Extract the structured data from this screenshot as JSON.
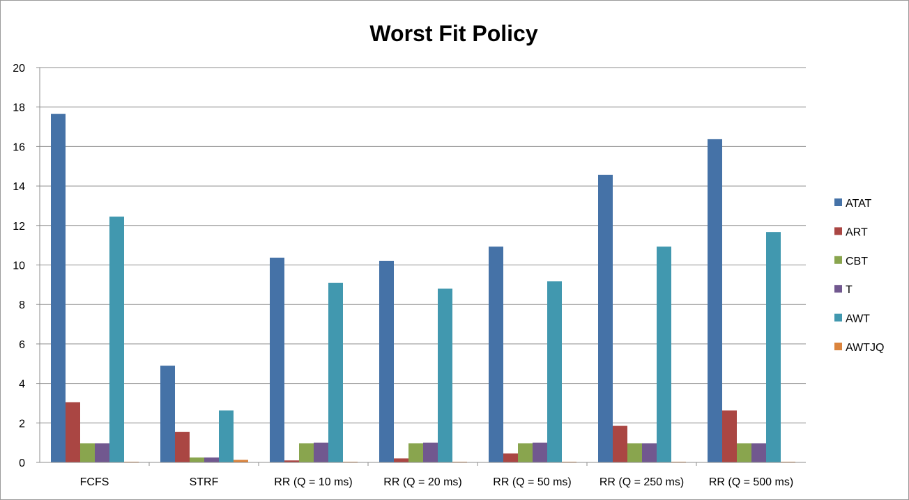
{
  "chart_data": {
    "type": "bar",
    "title": "Worst Fit Policy",
    "xlabel": "",
    "ylabel": "",
    "ylim": [
      0,
      20
    ],
    "yticks": [
      "0",
      "2",
      "4",
      "6",
      "8",
      "10",
      "12",
      "14",
      "16",
      "18",
      "20"
    ],
    "grid": "horizontal",
    "legend_position": "right",
    "categories": [
      "FCFS",
      "STRF",
      "RR (Q = 10 ms)",
      "RR (Q = 20 ms)",
      "RR (Q = 50 ms)",
      "RR (Q = 250 ms)",
      "RR (Q = 500 ms)"
    ],
    "series": [
      {
        "name": "ATAT",
        "color": "#4572A7",
        "values": [
          17.65,
          4.9,
          10.37,
          10.2,
          10.93,
          14.57,
          16.37
        ]
      },
      {
        "name": "ART",
        "color": "#AA4643",
        "values": [
          3.05,
          1.55,
          0.1,
          0.2,
          0.45,
          1.85,
          2.63
        ]
      },
      {
        "name": "CBT",
        "color": "#89A54E",
        "values": [
          0.97,
          0.25,
          0.97,
          0.97,
          0.97,
          0.97,
          0.97
        ]
      },
      {
        "name": "T",
        "color": "#71588F",
        "values": [
          0.97,
          0.25,
          1.0,
          1.0,
          1.0,
          0.97,
          0.97
        ]
      },
      {
        "name": "AWT",
        "color": "#4198AF",
        "values": [
          12.45,
          2.63,
          9.1,
          8.8,
          9.17,
          10.93,
          11.67
        ]
      },
      {
        "name": "AWTJQ",
        "color": "#DB843D",
        "values": [
          0.02,
          0.13,
          0.02,
          0.02,
          0.02,
          0.02,
          0.02
        ]
      }
    ]
  }
}
